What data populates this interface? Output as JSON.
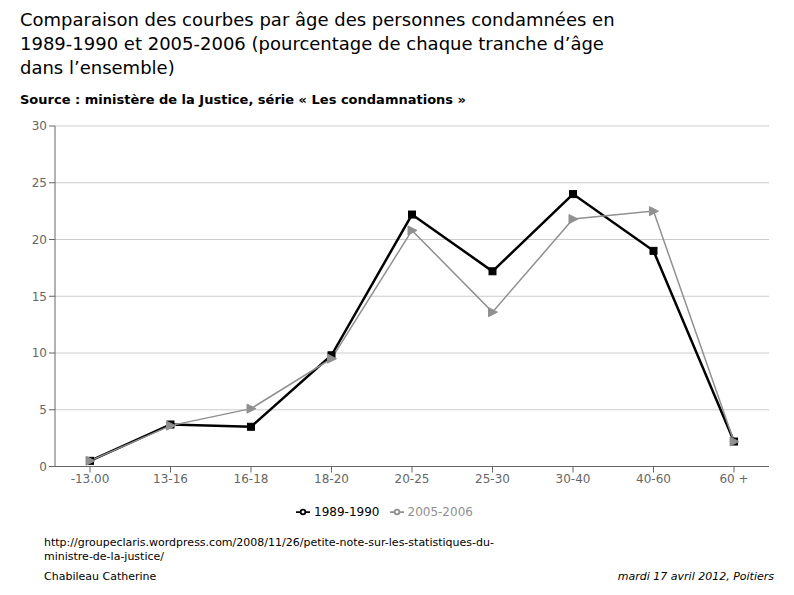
{
  "chart_data": {
    "type": "line",
    "title": "Comparaison des courbes par âge des personnes condamnées en\n1989-1990 et 2005-2006 (pourcentage de chaque tranche d’âge\ndans l’ensemble)",
    "subtitle": "Source : ministère de la Justice, série « Les condamnations »",
    "annotations": [
      "http://groupeclaris.wordpress.com/2008/11/26/petite-note-sur-les-statistiques-du-\nministre-de-la-justice/",
      "Chabileau Catherine",
      "mardi 17 avril 2012, Poitiers"
    ],
    "categories": [
      "-13.00",
      "13-16",
      "16-18",
      "18-20",
      "20-25",
      "25-30",
      "30-40",
      "40-60",
      "60 +"
    ],
    "series": [
      {
        "name": "1989-1990",
        "color": "#000000",
        "marker": "square",
        "line_style": "solid",
        "values": [
          0.5,
          3.7,
          3.5,
          9.8,
          22.2,
          17.2,
          24.0,
          19.0,
          2.2
        ]
      },
      {
        "name": "2005-2006",
        "color": "#909090",
        "marker": "triangle",
        "line_style": "solid",
        "values": [
          0.5,
          3.6,
          5.1,
          9.5,
          20.8,
          13.6,
          21.8,
          22.5,
          2.2
        ]
      }
    ],
    "ylim": [
      0,
      30
    ],
    "yticks": [
      0,
      5,
      10,
      15,
      20,
      25,
      30
    ],
    "grid": true,
    "legend": "bottom"
  }
}
